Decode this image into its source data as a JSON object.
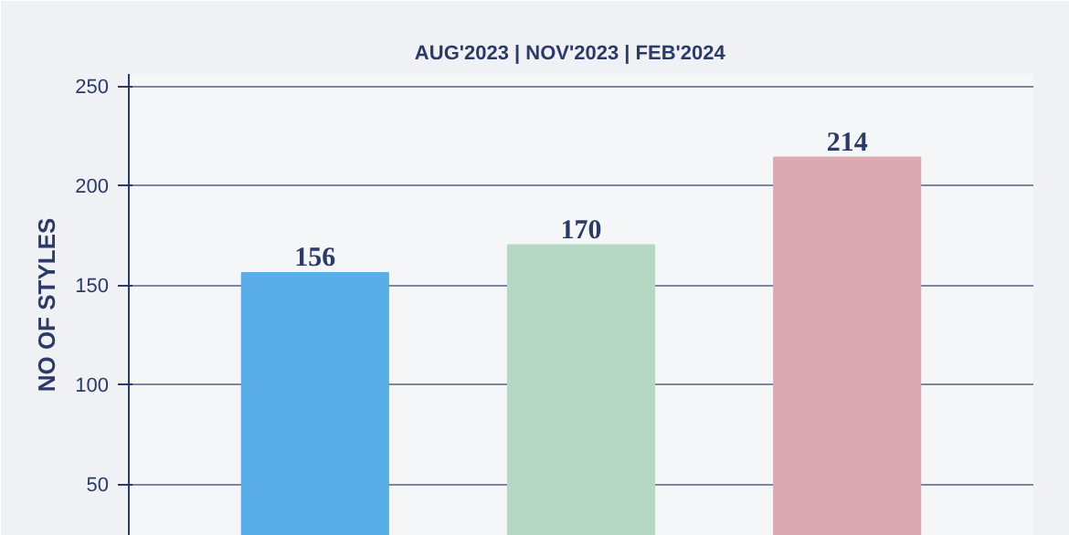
{
  "chart_data": {
    "type": "bar",
    "title": "AUG'2023  |  NOV'2023  |  FEB'2024",
    "ylabel": "NO OF STYLES",
    "categories": [
      null,
      null,
      null
    ],
    "values": [
      156,
      170,
      214
    ],
    "colors": [
      "#5aaee8",
      "#b4d8c4",
      "#dba9b2"
    ],
    "data_labels": true,
    "ylim": [
      24,
      256
    ],
    "yticks": [
      50,
      100,
      150,
      200,
      250
    ],
    "grid": "y"
  }
}
